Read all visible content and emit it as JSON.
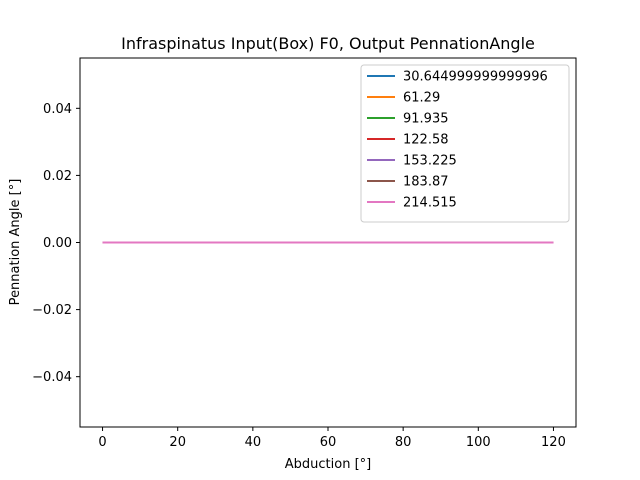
{
  "chart_data": {
    "type": "line",
    "title": "Infraspinatus Input(Box) F0, Output PennationAngle",
    "xlabel": "Abduction [°]",
    "ylabel": "Pennation Angle [°]",
    "xlim": [
      -6,
      126
    ],
    "ylim": [
      -0.055,
      0.055
    ],
    "xticks": [
      0,
      20,
      40,
      60,
      80,
      100,
      120
    ],
    "xtick_labels": [
      "0",
      "20",
      "40",
      "60",
      "80",
      "100",
      "120"
    ],
    "yticks": [
      -0.04,
      -0.02,
      0.0,
      0.02,
      0.04
    ],
    "ytick_labels": [
      "−0.04",
      "−0.02",
      "0.00",
      "0.02",
      "0.04"
    ],
    "grid": false,
    "legend_position": "top-right",
    "x": [
      0,
      120
    ],
    "series": [
      {
        "name": "30.644999999999996",
        "color": "#1f77b4",
        "values": [
          0,
          0
        ]
      },
      {
        "name": "61.29",
        "color": "#ff7f0e",
        "values": [
          0,
          0
        ]
      },
      {
        "name": "91.935",
        "color": "#2ca02c",
        "values": [
          0,
          0
        ]
      },
      {
        "name": "122.58",
        "color": "#d62728",
        "values": [
          0,
          0
        ]
      },
      {
        "name": "153.225",
        "color": "#9467bd",
        "values": [
          0,
          0
        ]
      },
      {
        "name": "183.87",
        "color": "#8c564b",
        "values": [
          0,
          0
        ]
      },
      {
        "name": "214.515",
        "color": "#e377c2",
        "values": [
          0,
          0
        ]
      }
    ]
  }
}
